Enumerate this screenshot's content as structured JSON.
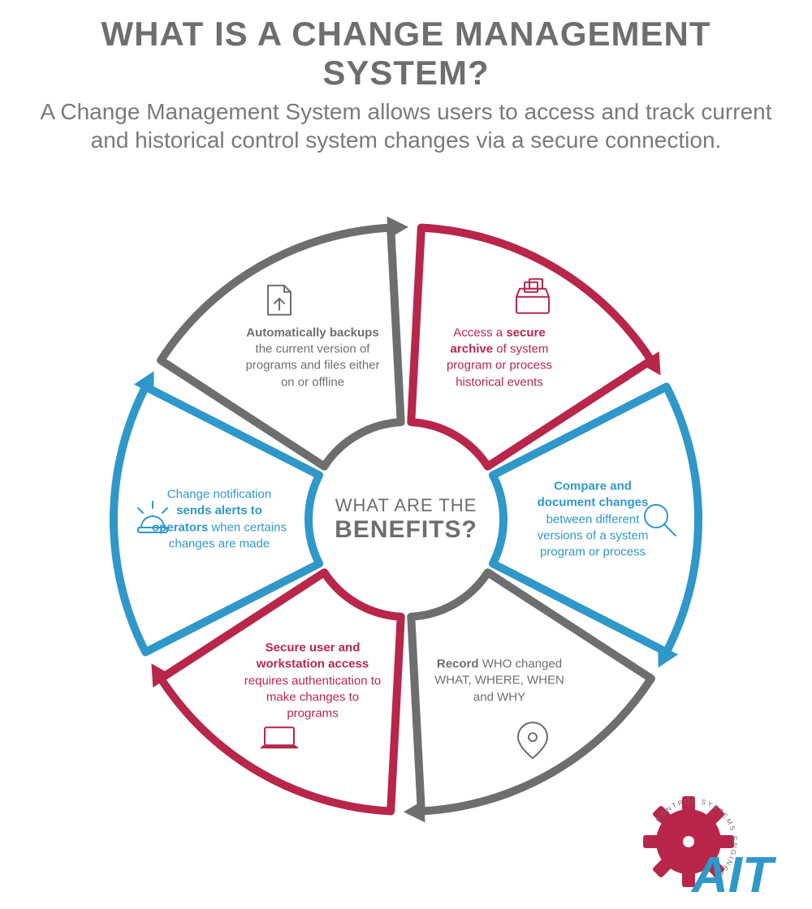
{
  "header": {
    "title": "WHAT IS A CHANGE MANAGEMENT SYSTEM?",
    "subtitle": "A Change Management System allows users to access and track current and historical control system changes via a secure connection."
  },
  "center": {
    "line1": "WHAT ARE THE",
    "line2": "BENEFITS?"
  },
  "colors": {
    "red": "#b8264a",
    "blue": "#2f98c9",
    "gray": "#6e6e6e",
    "bg": "#ffffff"
  },
  "wheel": {
    "outer_radius": 360,
    "inner_radius": 120,
    "stroke_width": 10,
    "gap_deg": 6,
    "segments": [
      {
        "id": "archive",
        "start_deg": -90,
        "color": "#b8264a",
        "icon": "archive-icon",
        "text_pre": "Access a ",
        "text_bold": "secure archive",
        "text_post": " of system program or process historical events"
      },
      {
        "id": "compare",
        "start_deg": -30,
        "color": "#2f98c9",
        "icon": "magnifier-icon",
        "text_pre": "",
        "text_bold": "Compare and document changes",
        "text_post": " between different versions of a system program or process"
      },
      {
        "id": "record",
        "start_deg": 30,
        "color": "#6e6e6e",
        "icon": "pin-icon",
        "text_pre": "",
        "text_bold": "Record",
        "text_post": " WHO changed WHAT, WHERE, WHEN and WHY"
      },
      {
        "id": "secure",
        "start_deg": 90,
        "color": "#b8264a",
        "icon": "laptop-icon",
        "text_pre": "",
        "text_bold": "Secure user and workstation access",
        "text_post": " requires authentication to make changes to programs"
      },
      {
        "id": "alerts",
        "start_deg": 150,
        "color": "#2f98c9",
        "icon": "alert-icon",
        "text_pre": "Change notification ",
        "text_bold": "sends alerts to operators",
        "text_post": " when certains changes are made"
      },
      {
        "id": "backup",
        "start_deg": 210,
        "color": "#6e6e6e",
        "icon": "upload-icon",
        "text_pre": "",
        "text_bold": "Automatically backups",
        "text_post": " the current version of programs and files either on or offline"
      }
    ]
  },
  "logo": {
    "text": "AIT",
    "tagline": "CONTROL SYSTEMS ENGINEERS",
    "gear_color": "#b8264a",
    "text_color": "#2f98c9"
  }
}
